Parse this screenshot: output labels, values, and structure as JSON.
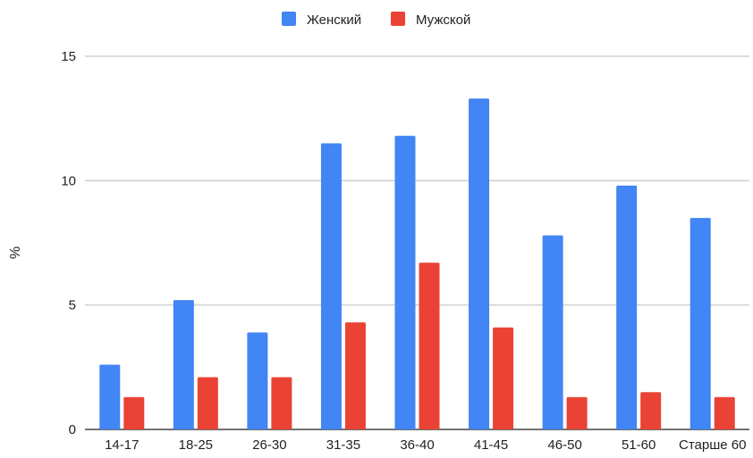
{
  "chart_data": {
    "type": "bar",
    "ylabel": "%",
    "xlabel": "",
    "ylim": [
      0,
      15
    ],
    "yticks": [
      0,
      5,
      10,
      15
    ],
    "grid": true,
    "legend": "top-center",
    "categories": [
      "14-17",
      "18-25",
      "26-30",
      "31-35",
      "36-40",
      "41-45",
      "46-50",
      "51-60",
      "Старше 60"
    ],
    "series": [
      {
        "name": "Женский",
        "color": "#4285f4",
        "values": [
          2.6,
          5.2,
          3.9,
          11.5,
          11.8,
          13.3,
          7.8,
          9.8,
          8.5
        ]
      },
      {
        "name": "Мужской",
        "color": "#ea4335",
        "values": [
          1.3,
          2.1,
          2.1,
          4.3,
          6.7,
          4.1,
          1.3,
          1.5,
          1.3
        ]
      }
    ]
  }
}
